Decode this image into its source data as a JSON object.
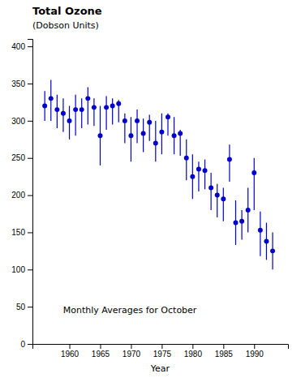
{
  "chart_data": {
    "type": "scatter",
    "title": "Total Ozone",
    "ylabel": "(Dobson Units)",
    "subtitle": "Monthly Averages for October",
    "xlabel": "Year",
    "x": [
      1956,
      1957,
      1958,
      1959,
      1960,
      1961,
      1962,
      1963,
      1964,
      1965,
      1966,
      1967,
      1968,
      1969,
      1970,
      1971,
      1972,
      1973,
      1974,
      1975,
      1976,
      1977,
      1978,
      1979,
      1980,
      1981,
      1982,
      1983,
      1984,
      1985,
      1986,
      1987,
      1988,
      1989,
      1990,
      1991,
      1992,
      1993
    ],
    "values": [
      320,
      330,
      315,
      310,
      300,
      315,
      315,
      330,
      318,
      280,
      318,
      320,
      323,
      300,
      280,
      300,
      283,
      298,
      270,
      285,
      305,
      280,
      283,
      250,
      225,
      235,
      233,
      210,
      200,
      195,
      248,
      163,
      165,
      180,
      230,
      153,
      138,
      125
    ],
    "yerr_low": [
      20,
      30,
      25,
      25,
      25,
      35,
      25,
      35,
      25,
      40,
      30,
      25,
      25,
      30,
      35,
      30,
      25,
      25,
      25,
      30,
      25,
      25,
      30,
      30,
      30,
      30,
      25,
      30,
      30,
      30,
      30,
      30,
      25,
      30,
      50,
      35,
      25,
      25
    ],
    "yerr_high": [
      20,
      25,
      20,
      20,
      20,
      20,
      15,
      15,
      12,
      40,
      15,
      10,
      5,
      10,
      25,
      15,
      20,
      10,
      30,
      25,
      5,
      25,
      5,
      25,
      30,
      10,
      15,
      20,
      15,
      15,
      20,
      30,
      15,
      30,
      20,
      25,
      25,
      25
    ],
    "color": "#0000cc",
    "marker": "circle",
    "xlim": [
      1954,
      1995.5
    ],
    "ylim": [
      0,
      410
    ],
    "xticks": [
      1960,
      1965,
      1970,
      1975,
      1980,
      1985,
      1990
    ],
    "yticks": [
      0,
      50,
      100,
      150,
      200,
      250,
      300,
      350,
      400
    ],
    "grid": false
  }
}
